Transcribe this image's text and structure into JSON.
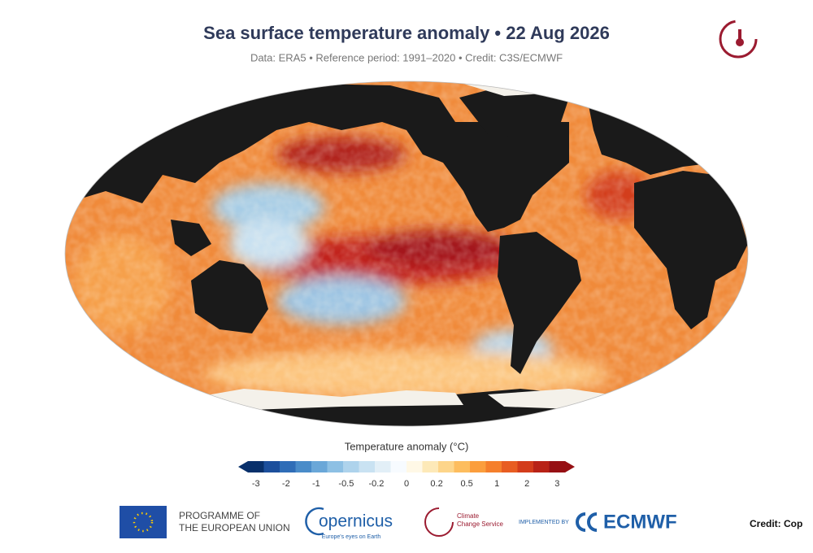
{
  "header": {
    "title": "Sea surface temperature anomaly • 22 Aug 2026",
    "subtitle": "Data: ERA5 • Reference period: 1991–2020 • Credit: C3S/ECMWF"
  },
  "colorbar": {
    "title": "Temperature anomaly (°C)",
    "tick_labels": [
      "-3",
      "-2",
      "-1",
      "-0.5",
      "-0.2",
      "0",
      "0.2",
      "0.5",
      "1",
      "2",
      "3"
    ],
    "colors": [
      "#08306b",
      "#1c4f9c",
      "#2f6db7",
      "#4a8cc9",
      "#6aa7d8",
      "#8dc0e4",
      "#aed3ec",
      "#c9e2f2",
      "#e2eff7",
      "#f7fbff",
      "#fff8e6",
      "#fde9b8",
      "#fdd58a",
      "#fdbd5e",
      "#fb9e3d",
      "#f57f2c",
      "#e85d22",
      "#d33c1b",
      "#b82217",
      "#961014"
    ]
  },
  "footer": {
    "eu_line1": "PROGRAMME OF",
    "eu_line2": "THE EUROPEAN UNION",
    "copernicus": "opernicus",
    "copernicus_tagline": "Europe's eyes on Earth",
    "c3s_line1": "Climate",
    "c3s_line2": "Change Service",
    "implemented_by": "IMPLEMENTED BY",
    "ecmwf": "ECMWF",
    "credit": "Credit: Cop"
  }
}
